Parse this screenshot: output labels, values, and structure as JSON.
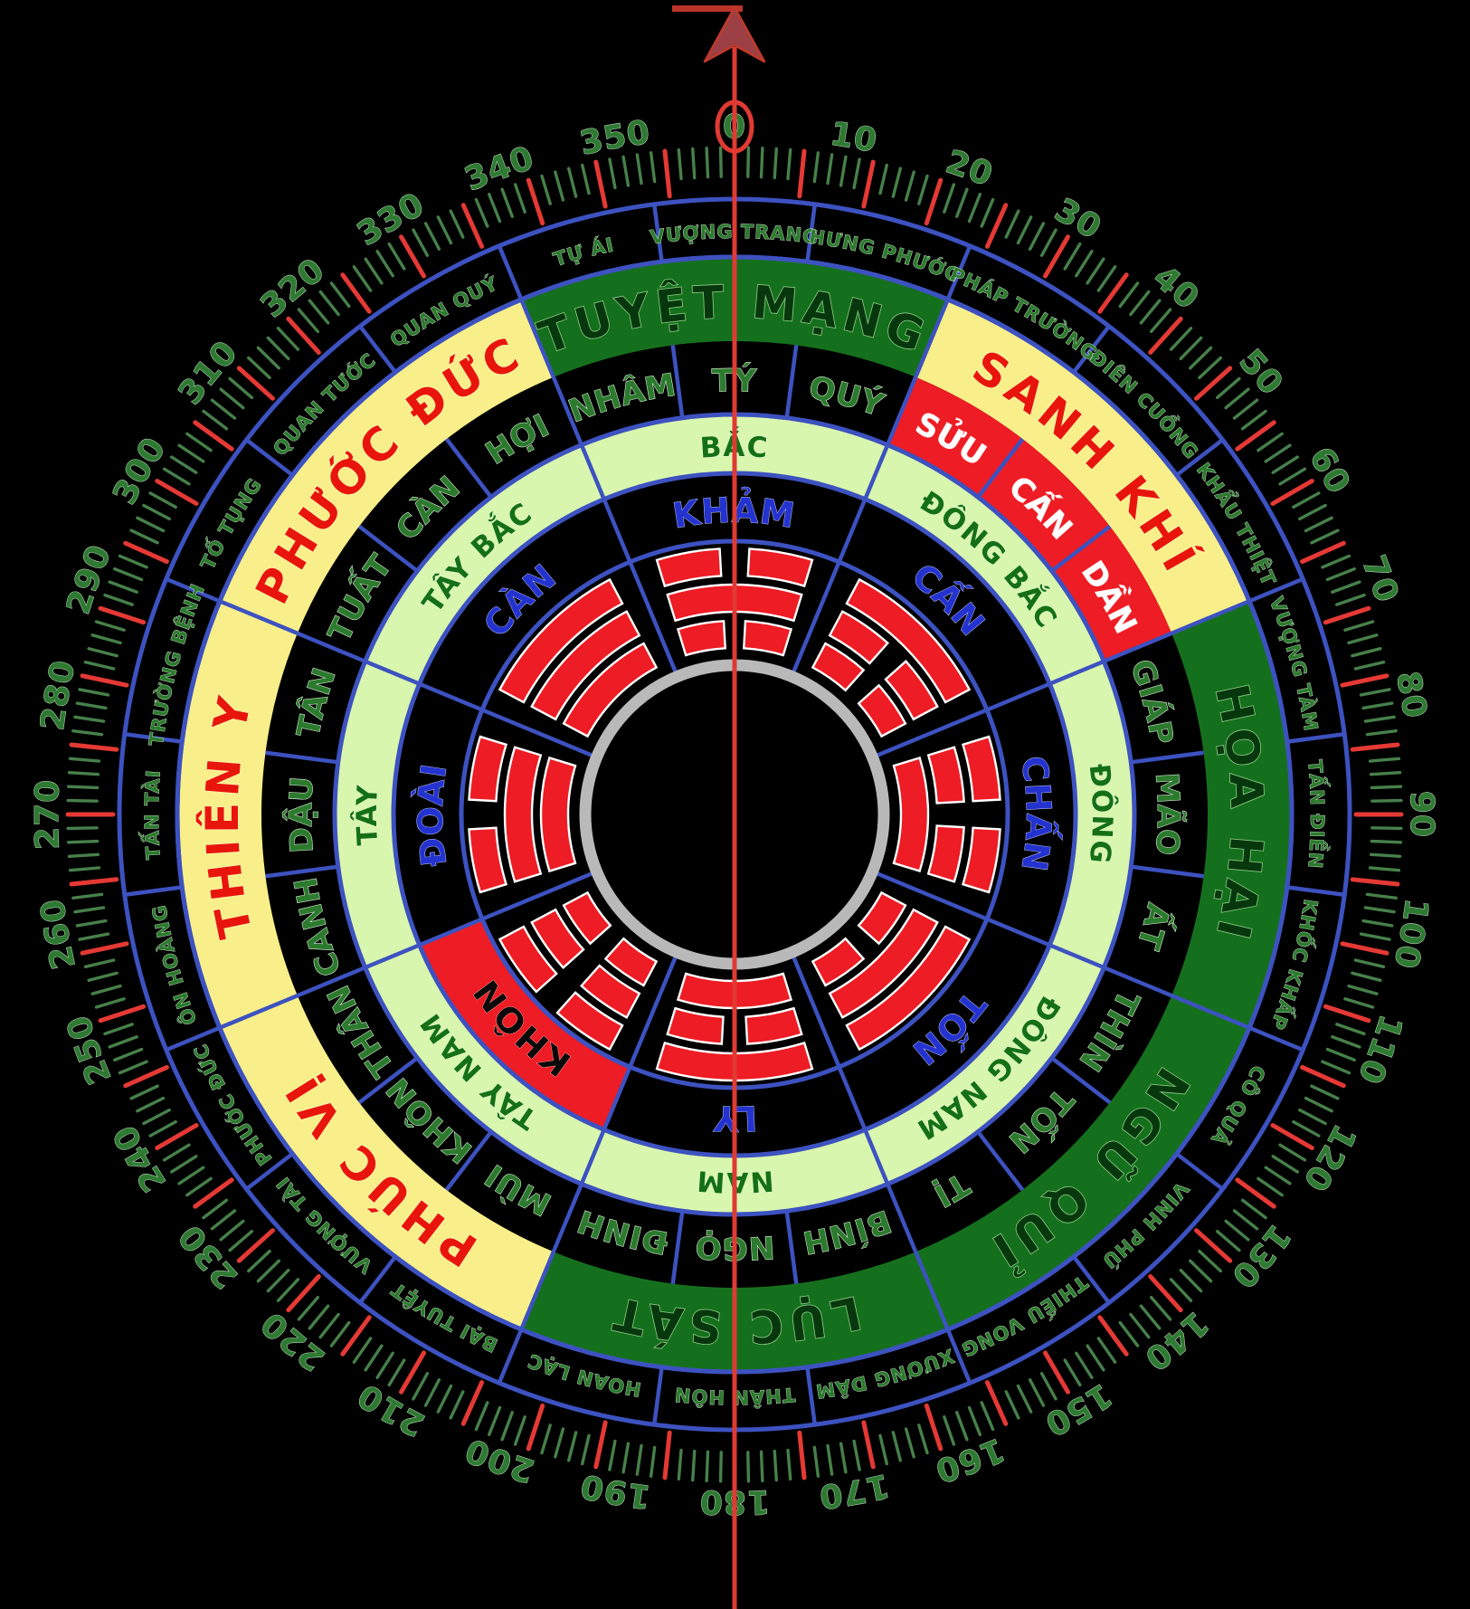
{
  "palette": {
    "background": "#000000",
    "ring_line_blue": "#3d52c0",
    "light_green": "#d9f6ae",
    "dark_green": "#15701d",
    "yellow": "#f8ef8a",
    "red": "#ee1c24",
    "gray_ring": "#b9b9b9",
    "tick_green": "#47804a",
    "tick_red": "#e53935",
    "arrow_shaft": "#e03a33",
    "arrow_head": "#9c4045"
  },
  "compass": {
    "auspice_sectors": [
      {
        "label": "TUYỆT MẠNG",
        "deg": 0,
        "bg": "dark_green",
        "fg": "dark"
      },
      {
        "label": "SANH KHÍ",
        "deg": 45,
        "bg": "yellow",
        "fg": "red"
      },
      {
        "label": "HỌA HẠI",
        "deg": 90,
        "bg": "dark_green",
        "fg": "dark"
      },
      {
        "label": "NGŨ QUỈ",
        "deg": 135,
        "bg": "dark_green",
        "fg": "dark"
      },
      {
        "label": "LỤC SÁT",
        "deg": 180,
        "bg": "dark_green",
        "fg": "dark"
      },
      {
        "label": "PHÚC VỊ",
        "deg": 225,
        "bg": "yellow",
        "fg": "red"
      },
      {
        "label": "THIÊN Y",
        "deg": 270,
        "bg": "yellow",
        "fg": "red"
      },
      {
        "label": "PHƯỚC ĐỨC",
        "deg": 315,
        "bg": "yellow",
        "fg": "red"
      }
    ],
    "minor_ring": [
      {
        "label": "VƯỢNG TRANG",
        "deg": 0
      },
      {
        "label": "HƯNG PHƯỚC",
        "deg": 15
      },
      {
        "label": "PHÁP TRƯỜNG",
        "deg": 30
      },
      {
        "label": "ĐIÊN CUỒNG",
        "deg": 45
      },
      {
        "label": "KHẨU THIỆT",
        "deg": 60
      },
      {
        "label": "VƯỢNG TÀM",
        "deg": 75
      },
      {
        "label": "TẤN ĐIỀN",
        "deg": 90
      },
      {
        "label": "KHỐC KHẤP",
        "deg": 105
      },
      {
        "label": "CÔ QUẢ",
        "deg": 120
      },
      {
        "label": "VINH PHÚ",
        "deg": 135
      },
      {
        "label": "THIẾU VONG",
        "deg": 150
      },
      {
        "label": "XƯƠNG DÂM",
        "deg": 165
      },
      {
        "label": "THÂN HÔN",
        "deg": 180
      },
      {
        "label": "HOAN LẠC",
        "deg": 195
      },
      {
        "label": "BẠI TUYỆT",
        "deg": 210
      },
      {
        "label": "VƯỢNG TÀI",
        "deg": 225
      },
      {
        "label": "PHƯỚC ĐỨC",
        "deg": 240
      },
      {
        "label": "ÔN HOÀNG",
        "deg": 255
      },
      {
        "label": "TẤN TÀI",
        "deg": 270
      },
      {
        "label": "TRƯỜNG BỆNH",
        "deg": 285
      },
      {
        "label": "TỐ TỤNG",
        "deg": 300
      },
      {
        "label": "QUAN TƯỚC",
        "deg": 315
      },
      {
        "label": "QUAN QUÝ",
        "deg": 330
      },
      {
        "label": "TỰ ÁI",
        "deg": 345
      }
    ],
    "stems_branches": [
      {
        "label": "TÝ",
        "deg": 0
      },
      {
        "label": "QUÝ",
        "deg": 15
      },
      {
        "label": "SỬU",
        "deg": 30,
        "highlight": true
      },
      {
        "label": "CẤN",
        "deg": 45,
        "highlight": true
      },
      {
        "label": "DẦN",
        "deg": 60,
        "highlight": true
      },
      {
        "label": "GIÁP",
        "deg": 75
      },
      {
        "label": "MÃO",
        "deg": 90
      },
      {
        "label": "ẤT",
        "deg": 105
      },
      {
        "label": "THÌN",
        "deg": 120
      },
      {
        "label": "TỐN",
        "deg": 135
      },
      {
        "label": "TỊ",
        "deg": 150
      },
      {
        "label": "BÍNH",
        "deg": 165
      },
      {
        "label": "NGỌ",
        "deg": 180
      },
      {
        "label": "ĐINH",
        "deg": 195
      },
      {
        "label": "MÙI",
        "deg": 210
      },
      {
        "label": "KHÔN",
        "deg": 225
      },
      {
        "label": "THÂN",
        "deg": 240
      },
      {
        "label": "CANH",
        "deg": 255
      },
      {
        "label": "DẬU",
        "deg": 270
      },
      {
        "label": "TÂN",
        "deg": 285
      },
      {
        "label": "TUẤT",
        "deg": 300
      },
      {
        "label": "CÀN",
        "deg": 315
      },
      {
        "label": "HỢI",
        "deg": 330
      },
      {
        "label": "NHÂM",
        "deg": 345
      }
    ],
    "directions": [
      {
        "label": "BẮC",
        "deg": 0
      },
      {
        "label": "ĐÔNG BẮC",
        "deg": 45
      },
      {
        "label": "ĐÔNG",
        "deg": 90
      },
      {
        "label": "ĐÔNG NAM",
        "deg": 135
      },
      {
        "label": "NAM",
        "deg": 180
      },
      {
        "label": "TÂY NAM",
        "deg": 225
      },
      {
        "label": "TÂY",
        "deg": 270
      },
      {
        "label": "TÂY BẮC",
        "deg": 315
      }
    ],
    "trigrams": [
      {
        "name": "KHẢM",
        "deg": 0,
        "lines": [
          "b",
          "s",
          "b"
        ]
      },
      {
        "name": "CẤN",
        "deg": 45,
        "lines": [
          "s",
          "b",
          "b"
        ]
      },
      {
        "name": "CHẤN",
        "deg": 90,
        "lines": [
          "b",
          "b",
          "s"
        ]
      },
      {
        "name": "TỐN",
        "deg": 135,
        "lines": [
          "s",
          "s",
          "b"
        ]
      },
      {
        "name": "LY",
        "deg": 180,
        "lines": [
          "s",
          "b",
          "s"
        ]
      },
      {
        "name": "KHÔN",
        "deg": 225,
        "lines": [
          "b",
          "b",
          "b"
        ],
        "highlight": true
      },
      {
        "name": "ĐOÀI",
        "deg": 270,
        "lines": [
          "b",
          "s",
          "s"
        ]
      },
      {
        "name": "CÀN",
        "deg": 315,
        "lines": [
          "s",
          "s",
          "s"
        ]
      }
    ],
    "degree_labels": [
      0,
      10,
      20,
      30,
      40,
      50,
      60,
      70,
      80,
      90,
      100,
      110,
      120,
      130,
      140,
      150,
      160,
      170,
      180,
      190,
      200,
      210,
      220,
      230,
      240,
      250,
      260,
      270,
      280,
      290,
      300,
      310,
      320,
      330,
      340,
      350
    ],
    "ticks": {
      "minor_step_deg": 1.2,
      "major_every": 6
    }
  }
}
